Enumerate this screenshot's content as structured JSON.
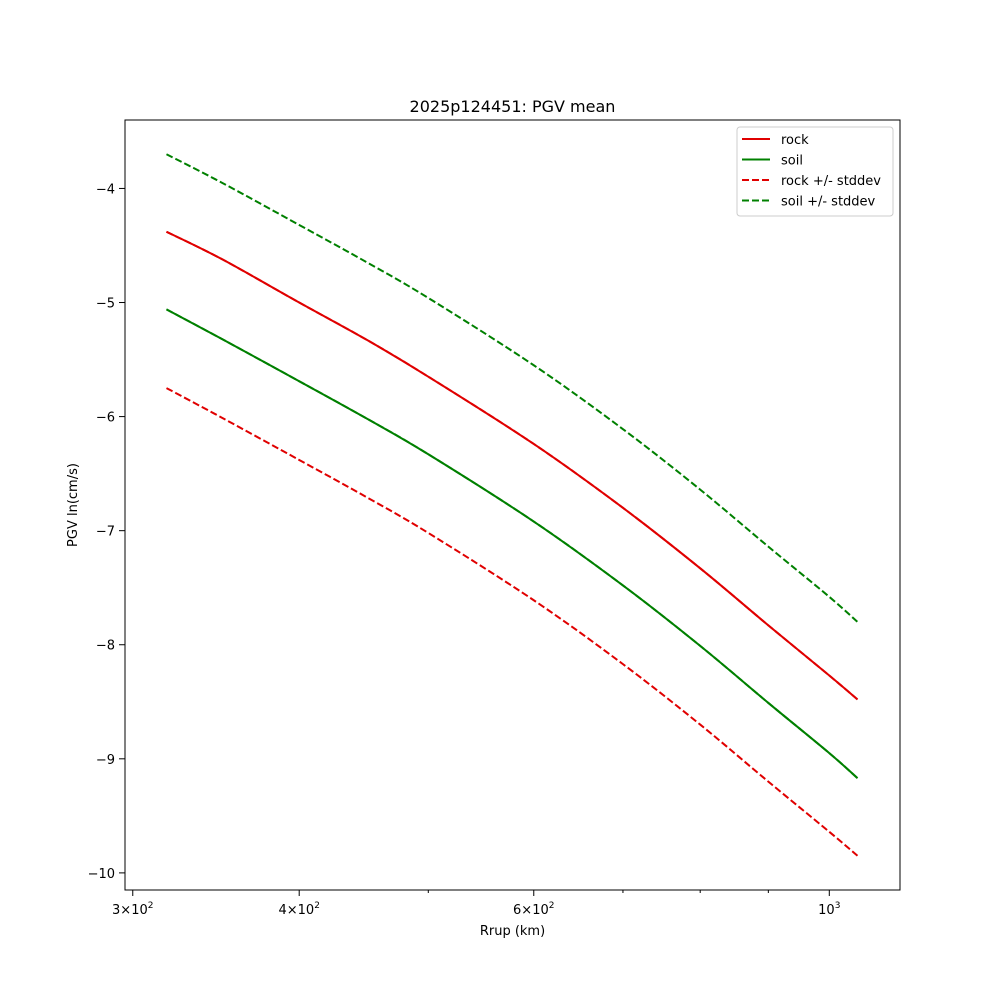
{
  "chart_data": {
    "type": "line",
    "title": "2025p124451: PGV mean",
    "xlabel": "Rrup (km)",
    "ylabel": "PGV ln(cm/s)",
    "xscale": "log",
    "xlim": [
      296,
      1130
    ],
    "ylim": [
      -10.15,
      -3.4
    ],
    "x_ticks": [
      {
        "value": 300,
        "base": "3",
        "exp": "2"
      },
      {
        "value": 400,
        "base": "4",
        "exp": "2"
      },
      {
        "value": 600,
        "base": "6",
        "exp": "2"
      },
      {
        "value": 1000,
        "base": "",
        "exp": "3"
      }
    ],
    "x_minor_ticks": [
      500,
      700,
      800,
      900
    ],
    "y_ticks": [
      -10,
      -9,
      -8,
      -7,
      -6,
      -5,
      -4
    ],
    "y_tick_labels": [
      "−10",
      "−9",
      "−8",
      "−7",
      "−6",
      "−5",
      "−4"
    ],
    "legend_position": "top-right",
    "colors": {
      "rock": "#e00000",
      "soil": "#008000"
    },
    "legend": [
      {
        "label": "rock",
        "color": "#e00000",
        "dashed": false
      },
      {
        "label": "soil",
        "color": "#008000",
        "dashed": false
      },
      {
        "label": "rock +/- stddev",
        "color": "#e00000",
        "dashed": true
      },
      {
        "label": "soil +/- stddev",
        "color": "#008000",
        "dashed": true
      }
    ],
    "x": [
      318,
      350,
      400,
      450,
      500,
      600,
      700,
      800,
      900,
      1000,
      1050
    ],
    "series": [
      {
        "name": "rock",
        "color": "#e00000",
        "dashed": false,
        "values": [
          -4.38,
          -4.62,
          -5.0,
          -5.33,
          -5.65,
          -6.24,
          -6.8,
          -7.33,
          -7.83,
          -8.27,
          -8.48
        ]
      },
      {
        "name": "soil",
        "color": "#008000",
        "dashed": false,
        "values": [
          -5.06,
          -5.32,
          -5.69,
          -6.02,
          -6.33,
          -6.92,
          -7.48,
          -8.01,
          -8.51,
          -8.95,
          -9.17
        ]
      },
      {
        "name": "rock +/- stddev",
        "color": "#e00000",
        "dashed": true,
        "values": [
          -4.38,
          -4.62,
          -5.0,
          -5.33,
          -5.65,
          -6.24,
          -6.8,
          -7.33,
          -7.83,
          -8.27,
          -8.48
        ]
      },
      {
        "name": "rock +/- stddev",
        "color": "#e00000",
        "dashed": true,
        "values": [
          -5.75,
          -6.01,
          -6.38,
          -6.71,
          -7.02,
          -7.61,
          -8.17,
          -8.7,
          -9.2,
          -9.64,
          -9.85
        ]
      },
      {
        "name": "soil +/- stddev",
        "color": "#008000",
        "dashed": true,
        "values": [
          -3.7,
          -3.95,
          -4.32,
          -4.65,
          -4.96,
          -5.55,
          -6.11,
          -6.64,
          -7.14,
          -7.58,
          -7.8
        ]
      },
      {
        "name": "soil +/- stddev",
        "color": "#008000",
        "dashed": true,
        "values": [
          -5.06,
          -5.32,
          -5.69,
          -6.02,
          -6.33,
          -6.92,
          -7.48,
          -8.01,
          -8.51,
          -8.95,
          -9.17
        ]
      }
    ]
  }
}
